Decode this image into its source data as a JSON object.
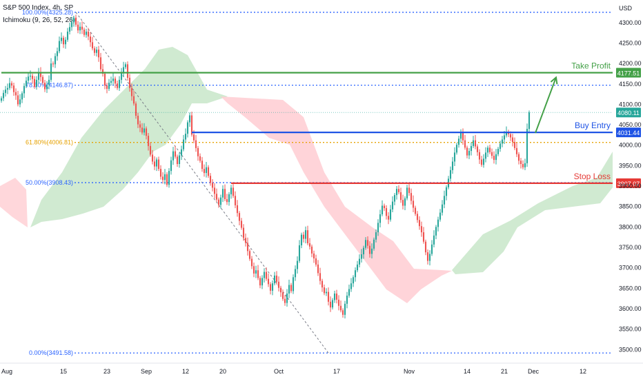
{
  "header": {
    "symbol_line": "S&P 500 Index, 4h, SP",
    "indicator_line": "Ichimoku (9, 26, 52, 26)"
  },
  "colors": {
    "bull": "#26a69a",
    "bear": "#ef5350",
    "take_profit": "#43a047",
    "buy_entry": "#1e53e5",
    "stop_loss": "#e53935",
    "fib": "#2962ff",
    "fib_618": "#e6a100",
    "cloud_green": "#c8e6c9",
    "cloud_red": "#ffcdd2"
  },
  "chart_data": {
    "type": "candlestick",
    "instrument": "S&P 500 Index",
    "timeframe": "4h",
    "y_axis": {
      "currency": "USD",
      "ticks": [
        3500,
        3550,
        3600,
        3650,
        3700,
        3750,
        3800,
        3850,
        3900,
        3950,
        4000,
        4050,
        4100,
        4150,
        4200,
        4250,
        4300
      ],
      "tick_labels": [
        "3500.00",
        "3550.00",
        "3600.00",
        "3650.00",
        "3700.00",
        "3750.00",
        "3800.00",
        "3850.00",
        "3900.00",
        "3950.00",
        "4000.00",
        "4050.00",
        "4100.00",
        "4150.00",
        "4200.00",
        "4250.00",
        "4300.00"
      ],
      "ylim": [
        3492,
        4325
      ]
    },
    "x_axis": {
      "ticks": [
        {
          "label": "Aug",
          "bar": 0
        },
        {
          "label": "15",
          "bar": 30
        },
        {
          "label": "23",
          "bar": 51
        },
        {
          "label": "Sep",
          "bar": 70
        },
        {
          "label": "12",
          "bar": 89
        },
        {
          "label": "20",
          "bar": 107
        },
        {
          "label": "Oct",
          "bar": 134
        },
        {
          "label": "17",
          "bar": 162
        },
        {
          "label": "Nov",
          "bar": 197
        },
        {
          "label": "14",
          "bar": 225
        },
        {
          "label": "21",
          "bar": 243
        },
        {
          "label": "Dec",
          "bar": 257
        },
        {
          "label": "12",
          "bar": 281
        }
      ],
      "xlim": [
        0,
        300
      ]
    },
    "levels": [
      {
        "name": "Take Profit",
        "value": 4177.51,
        "label": "4177.51",
        "color": "#43a047",
        "from_bar": 0
      },
      {
        "name": "Buy Entry",
        "value": 4031.44,
        "label": "4031.44",
        "color": "#1e53e5",
        "from_bar": 92
      },
      {
        "name": "Stop Loss",
        "value": 3907.07,
        "label": "3907.07",
        "color": "#e53935",
        "from_bar": 111
      }
    ],
    "last_price": {
      "value": 4080.11,
      "label": "4080.11"
    },
    "fibonacci": {
      "from": {
        "bar": 36,
        "price": 4325.28
      },
      "to": {
        "bar": 158,
        "price": 3491.58
      },
      "levels": [
        {
          "ratio": 1.0,
          "label": "100.00%(4325.28)",
          "value": 4325.28
        },
        {
          "ratio": 0.786,
          "label": "78.60%(4146.87)",
          "value": 4146.87
        },
        {
          "ratio": 0.618,
          "label": "61.80%(4006.81)",
          "value": 4006.81
        },
        {
          "ratio": 0.5,
          "label": "50.00%(3908.43)",
          "value": 3908.43
        },
        {
          "ratio": 0.0,
          "label": "0.00%(3491.58)",
          "value": 3491.58
        }
      ]
    },
    "projection_arrow": {
      "from": {
        "bar": 258,
        "price": 4030
      },
      "to": {
        "bar": 268,
        "price": 4166
      }
    },
    "candles_close": [
      4115,
      4128,
      4136,
      4140,
      4152,
      4146,
      4130,
      4122,
      4100,
      4112,
      4127,
      4145,
      4158,
      4168,
      4170,
      4162,
      4143,
      4160,
      4178,
      4167,
      4153,
      4137,
      4148,
      4160,
      4200,
      4198,
      4218,
      4230,
      4255,
      4263,
      4247,
      4258,
      4278,
      4289,
      4301,
      4312,
      4295,
      4281,
      4290,
      4283,
      4270,
      4278,
      4266,
      4252,
      4237,
      4226,
      4234,
      4215,
      4186,
      4175,
      4146,
      4138,
      4153,
      4157,
      4163,
      4151,
      4140,
      4160,
      4178,
      4191,
      4198,
      4165,
      4140,
      4120,
      4102,
      4072,
      4051,
      4043,
      4031,
      4041,
      4023,
      3998,
      3977,
      3960,
      3948,
      3965,
      3942,
      3923,
      3915,
      3929,
      3903,
      3937,
      3963,
      3985,
      3972,
      3954,
      3975,
      3990,
      4014,
      4028,
      4056,
      4073,
      4026,
      4012,
      3993,
      3973,
      3962,
      3942,
      3932,
      3946,
      3925,
      3908,
      3896,
      3881,
      3867,
      3854,
      3872,
      3893,
      3868,
      3861,
      3880,
      3896,
      3876,
      3853,
      3834,
      3815,
      3798,
      3773,
      3761,
      3741,
      3722,
      3704,
      3686,
      3694,
      3675,
      3657,
      3675,
      3690,
      3673,
      3660,
      3644,
      3662,
      3681,
      3666,
      3651,
      3640,
      3624,
      3614,
      3637,
      3658,
      3643,
      3677,
      3697,
      3717,
      3755,
      3781,
      3771,
      3792,
      3760,
      3752,
      3735,
      3723,
      3708,
      3687,
      3668,
      3652,
      3638,
      3641,
      3617,
      3603,
      3621,
      3637,
      3622,
      3607,
      3596,
      3585,
      3612,
      3632,
      3648,
      3662,
      3677,
      3694,
      3708,
      3722,
      3733,
      3749,
      3768,
      3754,
      3734,
      3747,
      3769,
      3787,
      3810,
      3831,
      3852,
      3846,
      3827,
      3818,
      3843,
      3862,
      3878,
      3893,
      3885,
      3866,
      3852,
      3870,
      3896,
      3883,
      3864,
      3847,
      3832,
      3817,
      3802,
      3787,
      3764,
      3738,
      3717,
      3734,
      3757,
      3779,
      3800,
      3818,
      3835,
      3855,
      3876,
      3897,
      3918,
      3939,
      3960,
      3982,
      4001,
      4016,
      4030,
      4012,
      3994,
      3975,
      3986,
      3998,
      4012,
      3997,
      3983,
      3965,
      3952,
      3967,
      3982,
      3994,
      3983,
      3974,
      3964,
      3978,
      3991,
      4004,
      4014,
      4024,
      4033,
      4027,
      4019,
      4008,
      3993,
      3978,
      3962,
      3954,
      3946,
      3956,
      4040,
      4080
    ]
  }
}
